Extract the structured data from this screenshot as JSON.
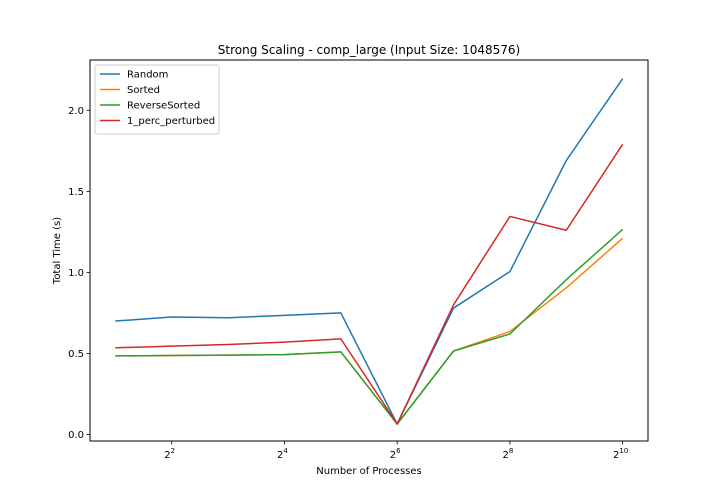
{
  "chart_data": {
    "type": "line",
    "title": "Strong Scaling - comp_large (Input Size: 1048576)",
    "xlabel": "Number of Processes",
    "ylabel": "Total Time (s)",
    "x_scale": "log2",
    "x": [
      2,
      4,
      8,
      16,
      32,
      64,
      128,
      256,
      512,
      1024
    ],
    "xticks": [
      {
        "value": 4,
        "base": "2",
        "exp": "2"
      },
      {
        "value": 16,
        "base": "2",
        "exp": "4"
      },
      {
        "value": 64,
        "base": "2",
        "exp": "6"
      },
      {
        "value": 256,
        "base": "2",
        "exp": "8"
      },
      {
        "value": 1024,
        "base": "2",
        "exp": "10"
      }
    ],
    "yticks": [
      "0.0",
      "0.5",
      "1.0",
      "1.5",
      "2.0"
    ],
    "ylim": [
      -0.04,
      2.31
    ],
    "grid": false,
    "legend_position": "top-left",
    "series": [
      {
        "name": "Random",
        "color": "#1f77b4",
        "values": [
          0.7,
          0.725,
          0.72,
          0.735,
          0.75,
          0.065,
          0.78,
          1.005,
          1.69,
          2.195
        ]
      },
      {
        "name": "Sorted",
        "color": "#ff7f0e",
        "values": [
          0.485,
          0.487,
          0.49,
          0.493,
          0.51,
          0.065,
          0.515,
          0.635,
          0.905,
          1.21
        ]
      },
      {
        "name": "ReverseSorted",
        "color": "#2ca02c",
        "values": [
          0.485,
          0.487,
          0.49,
          0.493,
          0.51,
          0.065,
          0.515,
          0.62,
          0.955,
          1.265
        ]
      },
      {
        "name": "1_perc_perturbed",
        "color": "#d62728",
        "values": [
          0.535,
          0.545,
          0.555,
          0.57,
          0.59,
          0.065,
          0.8,
          1.345,
          1.26,
          1.79
        ]
      }
    ]
  }
}
